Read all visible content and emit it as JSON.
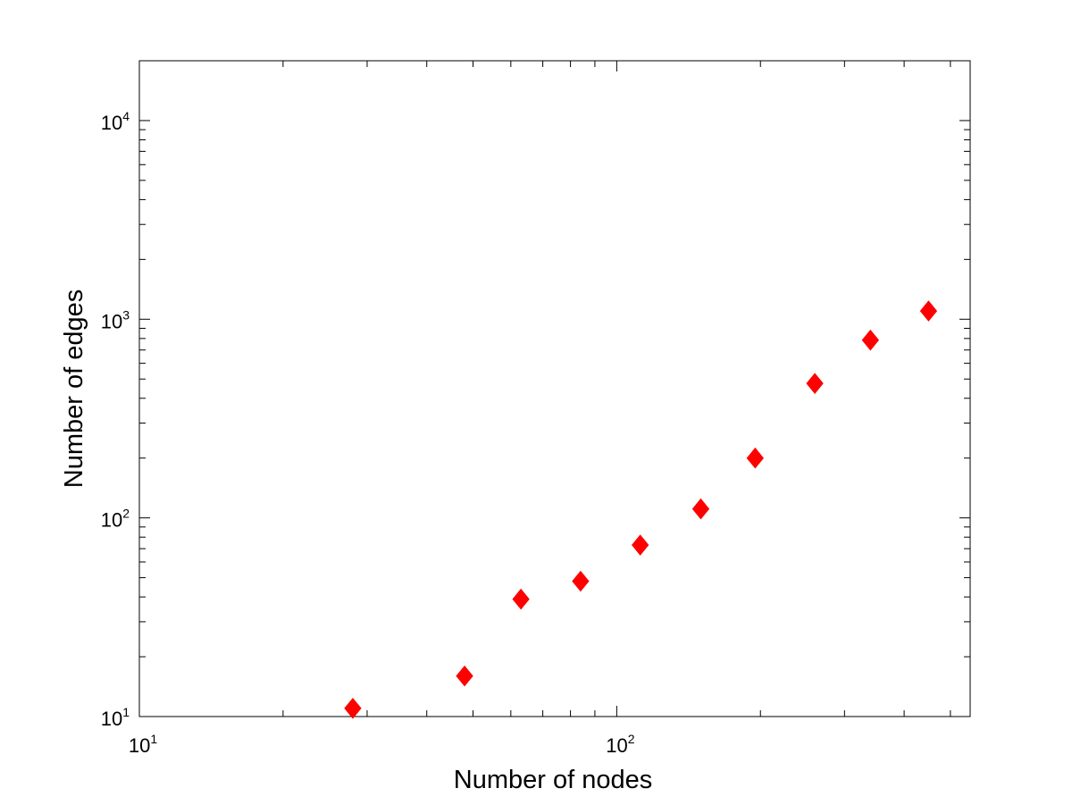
{
  "chart_data": {
    "type": "scatter",
    "title": "",
    "xlabel": "Number of nodes",
    "ylabel": "Number of edges",
    "x_scale": "log",
    "y_scale": "log",
    "xlim": [
      10,
      550
    ],
    "ylim": [
      10,
      20000
    ],
    "x_ticks": [
      {
        "base": "10",
        "exp": "1",
        "value": 10
      },
      {
        "base": "10",
        "exp": "2",
        "value": 100
      }
    ],
    "y_ticks": [
      {
        "base": "10",
        "exp": "1",
        "value": 10
      },
      {
        "base": "10",
        "exp": "2",
        "value": 100
      },
      {
        "base": "10",
        "exp": "3",
        "value": 1000
      },
      {
        "base": "10",
        "exp": "4",
        "value": 10000
      }
    ],
    "grid": false,
    "marker": "diamond",
    "marker_color": "#ff0000",
    "series": [
      {
        "x": [
          28,
          48,
          63,
          84,
          112,
          150,
          195,
          260,
          340,
          450
        ],
        "y": [
          11,
          16,
          39,
          48,
          73,
          111,
          200,
          475,
          785,
          1100
        ]
      }
    ]
  }
}
